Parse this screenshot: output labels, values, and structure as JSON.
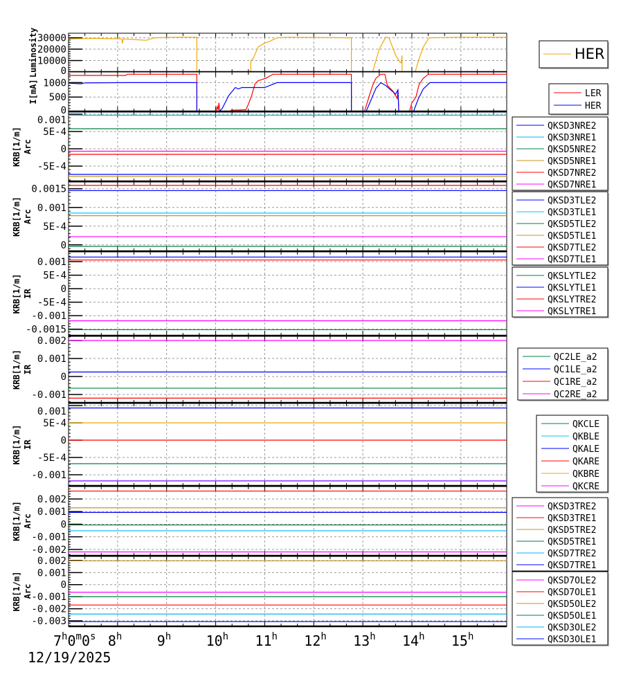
{
  "chart_data": [
    {
      "type": "line",
      "ylabel": [
        "Luminosity"
      ],
      "ylim": [
        0,
        34000
      ],
      "yticks": [
        {
          "v": 0,
          "label": "0"
        },
        {
          "v": 10000,
          "label": "10000"
        },
        {
          "v": 20000,
          "label": "20000"
        },
        {
          "v": 30000,
          "label": "30000"
        }
      ],
      "legend_large": true,
      "series": [
        {
          "name": "HER",
          "color": "#f0a800",
          "points": [
            [
              "7:00",
              29000
            ],
            [
              "7:30",
              29500
            ],
            [
              "8:05",
              29000
            ],
            [
              "8:06",
              25000
            ],
            [
              "8:07",
              29000
            ],
            [
              "8:20",
              28500
            ],
            [
              "8:35",
              27800
            ],
            [
              "8:45",
              30000
            ],
            [
              "9:10",
              30500
            ],
            [
              "9:37",
              30500
            ],
            [
              "9:37",
              0
            ],
            [
              "10:43",
              0
            ],
            [
              "10:43",
              10000
            ],
            [
              "10:46",
              12000
            ],
            [
              "10:52",
              22000
            ],
            [
              "11:00",
              25500
            ],
            [
              "11:05",
              26500
            ],
            [
              "11:15",
              30000
            ],
            [
              "11:30",
              30500
            ],
            [
              "12:46",
              30000
            ],
            [
              "12:46",
              0
            ],
            [
              "13:12",
              0
            ],
            [
              "13:20",
              20000
            ],
            [
              "13:28",
              30500
            ],
            [
              "13:32",
              30000
            ],
            [
              "13:40",
              15000
            ],
            [
              "13:45",
              9000
            ],
            [
              "13:47",
              8000
            ],
            [
              "13:48",
              14500
            ],
            [
              "13:48",
              0
            ],
            [
              "14:04",
              0
            ],
            [
              "14:08",
              10000
            ],
            [
              "14:14",
              22000
            ],
            [
              "14:21",
              30000
            ],
            [
              "15:00",
              30500
            ],
            [
              "15:56",
              30500
            ]
          ]
        }
      ]
    },
    {
      "type": "line",
      "ylabel": [
        "I[mA]"
      ],
      "ylim": [
        0,
        1370
      ],
      "yticks": [
        {
          "v": 0,
          "label": "0"
        },
        {
          "v": 500,
          "label": "500"
        },
        {
          "v": 1000,
          "label": "1000"
        }
      ],
      "series": [
        {
          "name": "LER",
          "color": "#ff0000",
          "points": [
            [
              "7:00",
              1250
            ],
            [
              "8:10",
              1250
            ],
            [
              "8:12",
              1290
            ],
            [
              "9:37",
              1290
            ],
            [
              "9:37",
              0
            ],
            [
              "10:00",
              0
            ],
            [
              "10:02",
              170
            ],
            [
              "10:03",
              40
            ],
            [
              "10:04",
              300
            ],
            [
              "10:05",
              0
            ],
            [
              "10:18",
              0
            ],
            [
              "10:19",
              40
            ],
            [
              "10:37",
              60
            ],
            [
              "10:40",
              250
            ],
            [
              "10:44",
              550
            ],
            [
              "10:48",
              950
            ],
            [
              "10:52",
              1070
            ],
            [
              "10:57",
              1110
            ],
            [
              "11:02",
              1160
            ],
            [
              "11:10",
              1290
            ],
            [
              "12:46",
              1290
            ],
            [
              "12:46",
              0
            ],
            [
              "13:02",
              0
            ],
            [
              "13:08",
              550
            ],
            [
              "13:12",
              900
            ],
            [
              "13:16",
              1150
            ],
            [
              "13:22",
              1290
            ],
            [
              "13:27",
              1290
            ],
            [
              "13:30",
              900
            ],
            [
              "13:37",
              700
            ],
            [
              "13:42",
              450
            ],
            [
              "13:43",
              750
            ],
            [
              "13:44",
              0
            ],
            [
              "13:57",
              0
            ],
            [
              "14:00",
              300
            ],
            [
              "14:05",
              500
            ],
            [
              "14:09",
              950
            ],
            [
              "14:14",
              1150
            ],
            [
              "14:20",
              1290
            ],
            [
              "15:56",
              1290
            ]
          ]
        },
        {
          "name": "HER",
          "color": "#0000ff",
          "points": [
            [
              "7:00",
              980
            ],
            [
              "7:15",
              960
            ],
            [
              "7:20",
              990
            ],
            [
              "8:10",
              1000
            ],
            [
              "9:37",
              1000
            ],
            [
              "9:37",
              0
            ],
            [
              "10:04",
              0
            ],
            [
              "10:08",
              100
            ],
            [
              "10:16",
              550
            ],
            [
              "10:24",
              830
            ],
            [
              "10:28",
              780
            ],
            [
              "10:32",
              830
            ],
            [
              "11:00",
              830
            ],
            [
              "11:08",
              920
            ],
            [
              "11:15",
              1000
            ],
            [
              "12:46",
              1000
            ],
            [
              "12:46",
              0
            ],
            [
              "13:04",
              0
            ],
            [
              "13:10",
              400
            ],
            [
              "13:16",
              800
            ],
            [
              "13:22",
              1000
            ],
            [
              "13:28",
              900
            ],
            [
              "13:40",
              600
            ],
            [
              "13:43",
              750
            ],
            [
              "13:44",
              0
            ],
            [
              "14:02",
              0
            ],
            [
              "14:08",
              450
            ],
            [
              "14:14",
              780
            ],
            [
              "14:22",
              1000
            ],
            [
              "15:56",
              1000
            ]
          ]
        }
      ]
    },
    {
      "type": "line",
      "ylabel": [
        "KRB[1/m]",
        "Arc"
      ],
      "ylim": [
        -0.00094,
        0.00106
      ],
      "yticks": [
        {
          "v": -0.0005,
          "label": "-5E-4"
        },
        {
          "v": 0,
          "label": "0"
        },
        {
          "v": 0.0005,
          "label": "5E-4"
        },
        {
          "v": 0.001,
          "label": "0.001"
        }
      ],
      "series": [
        {
          "name": "QKSD3NRE2",
          "color": "#0000ff",
          "value": -0.00074
        },
        {
          "name": "QKSD3NRE1",
          "color": "#00b4f0",
          "value": 0.00097
        },
        {
          "name": "QKSD5NRE2",
          "color": "#008040",
          "value": 0.00058
        },
        {
          "name": "QKSD5NRE1",
          "color": "#c8961e",
          "value": -0.0008
        },
        {
          "name": "QKSD7NRE2",
          "color": "#ff0000",
          "value": -0.00016
        },
        {
          "name": "QKSD7NRE1",
          "color": "#ff00ff",
          "value": -7e-05
        }
      ]
    },
    {
      "type": "line",
      "ylabel": [
        "KRB[1/m]",
        "Arc"
      ],
      "ylim": [
        -0.00017,
        0.00168
      ],
      "yticks": [
        {
          "v": 0,
          "label": "0"
        },
        {
          "v": 0.0005,
          "label": "5E-4"
        },
        {
          "v": 0.001,
          "label": "0.001"
        },
        {
          "v": 0.0015,
          "label": "0.0015"
        }
      ],
      "series": [
        {
          "name": "QKSD3TLE2",
          "color": "#0000ff",
          "value": 0.00145
        },
        {
          "name": "QKSD3TLE1",
          "color": "#00c8ff",
          "value": 0.00085
        },
        {
          "name": "QKSD5TLE2",
          "color": "#008040",
          "value": -4e-05
        },
        {
          "name": "QKSD5TLE1",
          "color": "#c8961e",
          "value": 0.00078
        },
        {
          "name": "QKSD7TLE2",
          "color": "#ff0000",
          "value": 0.00159
        },
        {
          "name": "QKSD7TLE1",
          "color": "#ff00ff",
          "value": 0.00022
        }
      ]
    },
    {
      "type": "line",
      "ylabel": [
        "KRB[1/m]",
        "IR"
      ],
      "ylim": [
        -0.00174,
        0.00136
      ],
      "yticks": [
        {
          "v": -0.0015,
          "label": "-0.0015"
        },
        {
          "v": -0.001,
          "label": "-0.001"
        },
        {
          "v": -0.0005,
          "label": "-5E-4"
        },
        {
          "v": 0,
          "label": "0"
        },
        {
          "v": 0.0005,
          "label": "5E-4"
        },
        {
          "v": 0.001,
          "label": "0.001"
        }
      ],
      "series": [
        {
          "name": "QKSLYTLE2",
          "color": "#008040",
          "value": -0.00152
        },
        {
          "name": "QKSLYTLE1",
          "color": "#0000ff",
          "value": 0.00117
        },
        {
          "name": "QKSLYTRE2",
          "color": "#ff0000",
          "value": 0.00106
        },
        {
          "name": "QKSLYTRE1",
          "color": "#ff00ff",
          "value": -0.00119
        }
      ]
    },
    {
      "type": "line",
      "ylabel": [
        "KRB[1/m]",
        "IR"
      ],
      "ylim": [
        -0.00146,
        0.00223
      ],
      "yticks": [
        {
          "v": -0.001,
          "label": "-0.001"
        },
        {
          "v": 0,
          "label": "0"
        },
        {
          "v": 0.001,
          "label": "0.001"
        },
        {
          "v": 0.002,
          "label": "0.002"
        }
      ],
      "series": [
        {
          "name": "QC2LE_a2",
          "color": "#008040",
          "value": -0.00065
        },
        {
          "name": "QC1LE_a2",
          "color": "#0000ff",
          "value": 0.00025
        },
        {
          "name": "QC1RE_a2",
          "color": "#ff0000",
          "value": -0.0012
        },
        {
          "name": "QC2RE_a2",
          "color": "#ff00ff",
          "value": 0.002
        }
      ]
    },
    {
      "type": "line",
      "ylabel": [
        "KRB[1/m]",
        "IR"
      ],
      "ylim": [
        -0.00132,
        0.00106
      ],
      "yticks": [
        {
          "v": -0.001,
          "label": "-0.001"
        },
        {
          "v": -0.0005,
          "label": "-5E-4"
        },
        {
          "v": 0,
          "label": "0"
        },
        {
          "v": 0.0005,
          "label": "5E-4"
        },
        {
          "v": 0.001,
          "label": "0.001"
        }
      ],
      "series": [
        {
          "name": "QKCLE",
          "color": "#008040",
          "value": -0.00068
        },
        {
          "name": "QKBLE",
          "color": "#00c8ff",
          "value": -0.00117
        },
        {
          "name": "QKALE",
          "color": "#0000ff",
          "value": 0.00093
        },
        {
          "name": "QKARE",
          "color": "#ff0000",
          "value": 0
        },
        {
          "name": "QKBRE",
          "color": "#f0a800",
          "value": 0.0005
        },
        {
          "name": "QKCRE",
          "color": "#ff00ff",
          "value": -0.00118
        }
      ]
    },
    {
      "type": "line",
      "ylabel": [
        "KRB[1/m]",
        "Arc"
      ],
      "ylim": [
        -0.0025,
        0.00299
      ],
      "yticks": [
        {
          "v": -0.002,
          "label": "-0.002"
        },
        {
          "v": -0.001,
          "label": "-0.001"
        },
        {
          "v": 0,
          "label": "0"
        },
        {
          "v": 0.001,
          "label": "0.001"
        },
        {
          "v": 0.002,
          "label": "0.002"
        }
      ],
      "series": [
        {
          "name": "QKSD3TRE2",
          "color": "#ff00ff",
          "value": -0.0022
        },
        {
          "name": "QKSD3TRE1",
          "color": "#ff0000",
          "value": 0.00263
        },
        {
          "name": "QKSD5TRE2",
          "color": "#c8961e",
          "value": 0.0013
        },
        {
          "name": "QKSD5TRE1",
          "color": "#008040",
          "value": -6e-05
        },
        {
          "name": "QKSD7TRE2",
          "color": "#00b4f0",
          "value": -0.00052
        },
        {
          "name": "QKSD7TRE1",
          "color": "#0000ff",
          "value": 0.00094
        }
      ]
    },
    {
      "type": "line",
      "ylabel": [
        "KRB[1/m]",
        "Arc"
      ],
      "ylim": [
        -0.00346,
        0.00234
      ],
      "yticks": [
        {
          "v": -0.003,
          "label": "-0.003"
        },
        {
          "v": -0.002,
          "label": "-0.002"
        },
        {
          "v": -0.001,
          "label": "-0.001"
        },
        {
          "v": 0,
          "label": "0"
        },
        {
          "v": 0.001,
          "label": "0.001"
        },
        {
          "v": 0.002,
          "label": "0.002"
        }
      ],
      "series": [
        {
          "name": "QKSD7OLE2",
          "color": "#ff00ff",
          "value": -0.00063
        },
        {
          "name": "QKSD7OLE1",
          "color": "#ff0000",
          "value": -0.00169
        },
        {
          "name": "QKSD5OLE2",
          "color": "#c8961e",
          "value": 0.00197
        },
        {
          "name": "QKSD5OLE1",
          "color": "#008040",
          "value": -0.001
        },
        {
          "name": "QKSD3OLE2",
          "color": "#00b4f0",
          "value": -0.00244
        },
        {
          "name": "QKSD3OLE1",
          "color": "#0000ff",
          "value": -0.00307
        }
      ]
    }
  ],
  "x_axis": {
    "range": [
      "7:00",
      "15:56"
    ],
    "ticks": [
      {
        "t": "7:00",
        "label": "7h0m0s"
      },
      {
        "t": "8:00",
        "label": "8h"
      },
      {
        "t": "9:00",
        "label": "9h"
      },
      {
        "t": "10:00",
        "label": "10h"
      },
      {
        "t": "11:00",
        "label": "11h"
      },
      {
        "t": "12:00",
        "label": "12h"
      },
      {
        "t": "13:00",
        "label": "13h"
      },
      {
        "t": "14:00",
        "label": "14h"
      },
      {
        "t": "15:00",
        "label": "15h"
      }
    ],
    "date": "12/19/2025",
    "grid": true
  }
}
